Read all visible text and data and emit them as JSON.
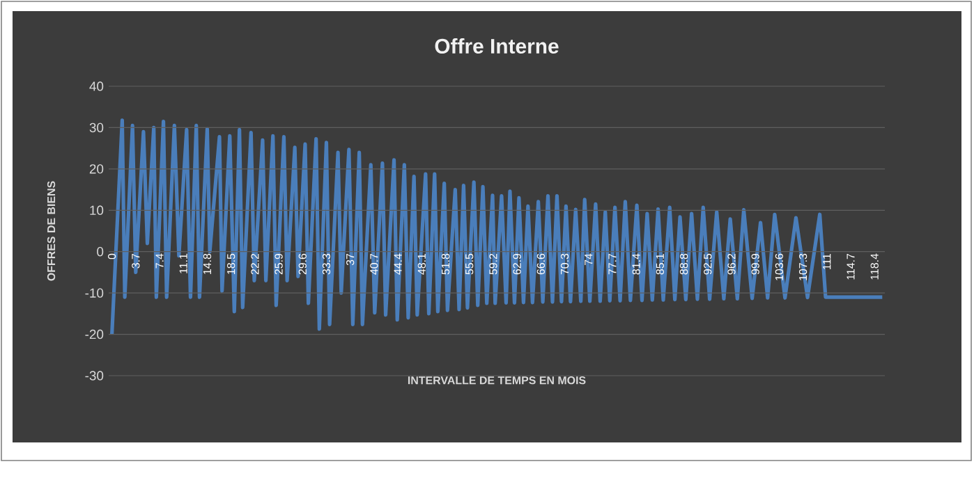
{
  "chart_data": {
    "type": "line",
    "title": "Offre Interne",
    "xlabel": "INTERVALLE DE TEMPS EN MOIS",
    "ylabel": "OFFRES DE BIENS",
    "xlim": [
      -0.5,
      120
    ],
    "ylim": [
      -30,
      40
    ],
    "xticks": [
      0,
      3.7,
      7.4,
      11.1,
      14.8,
      18.5,
      22.2,
      25.9,
      29.6,
      33.3,
      37,
      40.7,
      44.4,
      48.1,
      51.8,
      55.5,
      59.2,
      62.9,
      66.6,
      70.3,
      74,
      77.7,
      81.4,
      85.1,
      88.8,
      92.5,
      96.2,
      99.9,
      103.6,
      107.3,
      111,
      114.7,
      118.4
    ],
    "yticks": [
      -30,
      -20,
      -10,
      0,
      10,
      20,
      30,
      40
    ],
    "grid": "y",
    "line_style": "solid",
    "series": [
      {
        "color": "#4a7ebb",
        "x": [
          0,
          1.6,
          2.0,
          3.2,
          3.7,
          4.9,
          5.5,
          6.5,
          6.9,
          8.0,
          8.5,
          9.7,
          10.4,
          11.6,
          12.2,
          13.1,
          13.6,
          14.8,
          15.2,
          16.7,
          17.1,
          18.3,
          19.0,
          19.8,
          20.3,
          21.6,
          22.1,
          23.4,
          23.9,
          25.0,
          25.5,
          26.7,
          27.2,
          28.4,
          28.9,
          30.0,
          30.5,
          31.7,
          32.2,
          33.3,
          33.8,
          35.1,
          35.6,
          36.8,
          37.4,
          38.4,
          38.9,
          40.2,
          40.8,
          42.0,
          42.5,
          43.8,
          44.3,
          45.4,
          46.0,
          46.9,
          47.4,
          48.7,
          49.2,
          50.1,
          50.6,
          51.6,
          52.1,
          53.3,
          53.9,
          54.6,
          55.2,
          56.2,
          56.8,
          57.6,
          58.2,
          59.1,
          59.5,
          60.5,
          61.2,
          61.8,
          62.5,
          63.2,
          63.9,
          64.6,
          65.3,
          66.2,
          66.9,
          67.7,
          68.4,
          69.1,
          69.8,
          70.5,
          71.2,
          72.0,
          72.8,
          73.4,
          74.2,
          75.1,
          75.8,
          76.6,
          77.3,
          78.1,
          78.9,
          79.7,
          80.5,
          81.5,
          82.3,
          83.1,
          83.9,
          84.8,
          85.6,
          86.6,
          87.4,
          88.2,
          89.1,
          90.0,
          90.9,
          91.8,
          92.8,
          93.9,
          95.0,
          96.0,
          97.1,
          98.1,
          99.4,
          100.7,
          101.8,
          102.9,
          104.5,
          106.2,
          108.0,
          109.9,
          110.8,
          119.6
        ],
        "values": [
          -20,
          31.8,
          -11,
          30.5,
          -5,
          29,
          2,
          30,
          -11,
          31.5,
          -11,
          30.5,
          -1,
          29.5,
          -11,
          30.5,
          -11,
          29.7,
          0,
          27.8,
          -9.5,
          28,
          -14.5,
          29.5,
          -13.5,
          28.8,
          -7,
          27,
          -7,
          28,
          -13,
          27.8,
          -7,
          25.2,
          -6,
          26,
          -12.5,
          27.3,
          -18.7,
          26.4,
          -17.6,
          24,
          -10,
          24.7,
          -17.6,
          24,
          -17.6,
          21,
          -14.8,
          21.4,
          -15.3,
          22.2,
          -16.5,
          21,
          -16,
          18.2,
          -15.3,
          18.8,
          -15,
          18.8,
          -14.5,
          16.5,
          -14.2,
          15,
          -14,
          16,
          -13.6,
          16.8,
          -13,
          15.7,
          -12.5,
          13.6,
          -12.5,
          13.5,
          -12.4,
          14.6,
          -12.4,
          13,
          -12.3,
          11,
          -12.3,
          12.1,
          -12.2,
          13.5,
          -12.2,
          13.5,
          -12.1,
          11,
          -12.1,
          10.2,
          -12,
          12.6,
          -12,
          11.5,
          -12,
          9.6,
          -11.9,
          10.7,
          -11.9,
          12.1,
          -11.8,
          11.2,
          -11.8,
          9.2,
          -11.7,
          10.3,
          -11.7,
          10.7,
          -11.6,
          8.4,
          -11.6,
          9.2,
          -11.5,
          10.7,
          -11.5,
          9.6,
          -11.4,
          7.9,
          -11.4,
          10.1,
          -11.3,
          7,
          -11.2,
          9,
          -11.2,
          8.2,
          -11.1,
          9,
          -11,
          -11
        ]
      }
    ]
  }
}
